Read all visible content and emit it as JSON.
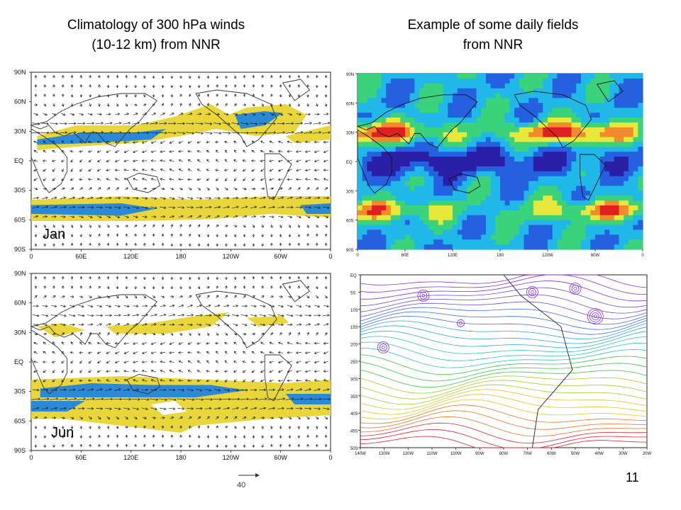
{
  "slide": {
    "left_title": [
      "Climatology of 300 hPa winds",
      "(10-12 km) from NNR"
    ],
    "right_title": [
      "Example of some daily fields",
      "from NNR"
    ],
    "page_number": "11"
  },
  "climatology_maps": {
    "lat_ticks": [
      "90N",
      "60N",
      "30N",
      "EQ",
      "30S",
      "60S",
      "90S"
    ],
    "lon_ticks": [
      "0",
      "60E",
      "120E",
      "180",
      "120W",
      "60W",
      "0"
    ],
    "months": [
      "Jan",
      "Jun"
    ],
    "reference_vector_label": "40",
    "colors": {
      "jet_core": "#2a8ad8",
      "jet_edge": "#e8d63a",
      "vector": "#222222",
      "coast": "#333333"
    }
  },
  "daily_wind_speed_map": {
    "lat_ticks": [
      "90N",
      "60N",
      "30N",
      "EQ",
      "30S",
      "60S",
      "90S"
    ],
    "lon_ticks": [
      "0",
      "60E",
      "120E",
      "180",
      "120W",
      "60W",
      "0"
    ],
    "colors": [
      "#2b1fa8",
      "#2460e0",
      "#20b8e8",
      "#3ad27a",
      "#e8e83a",
      "#f08a2a",
      "#e02020"
    ]
  },
  "streamline_map": {
    "lat_ticks": [
      "EQ",
      "5S",
      "10S",
      "15S",
      "20S",
      "25S",
      "30S",
      "35S",
      "40S",
      "45S",
      "50S"
    ],
    "lon_ticks": [
      "140W",
      "130W",
      "120W",
      "110W",
      "100W",
      "90W",
      "80W",
      "70W",
      "60W",
      "50W",
      "40W",
      "30W",
      "20W"
    ]
  }
}
